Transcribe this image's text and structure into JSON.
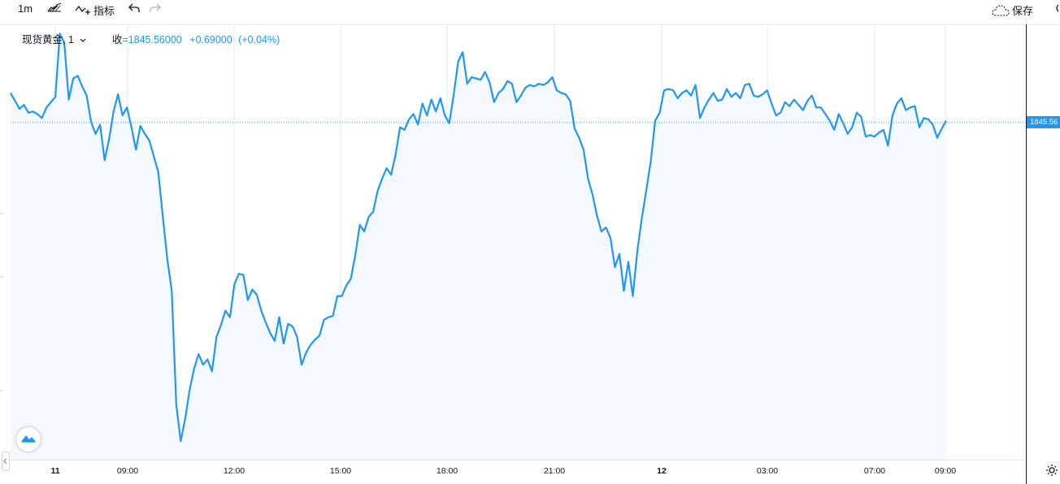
{
  "toolbar": {
    "interval": "1m",
    "indicators_label": "指标",
    "save_label": "保存",
    "chart_style_icon": "candles-icon",
    "undo_icon": "undo-icon",
    "redo_icon": "redo-icon",
    "cloud_icon": "cloud-icon"
  },
  "legend": {
    "symbol": "现货黄金, 1",
    "close_label": "收",
    "close_value": "=1845.56000",
    "change": "+0.69000",
    "change_pct": "(+0.04%)"
  },
  "price_tag": "1845.56",
  "colors": {
    "line": "#2196f3",
    "fill": "#f3f9fe",
    "grid": "#e6ebf1",
    "price_line": "#2196f3"
  },
  "chart_data": {
    "type": "area",
    "title": "",
    "xlabel": "",
    "ylabel": "",
    "x_ticks": [
      "11",
      "09:00",
      "12:00",
      "15:00",
      "18:00",
      "21:00",
      "12",
      "03:00",
      "07:00",
      "09:00"
    ],
    "y_ticks_visible": false,
    "last_value": 1845.56,
    "ylim": [
      1820.0,
      1853.0
    ],
    "grid": true,
    "series": [
      {
        "values": [
          1847.8,
          1847.2,
          1846.6,
          1846.9,
          1846.3,
          1846.4,
          1846.2,
          1845.9,
          1846.7,
          1847.1,
          1847.5,
          1852.3,
          1851.6,
          1847.3,
          1848.9,
          1849.1,
          1848.3,
          1847.6,
          1845.6,
          1844.7,
          1845.4,
          1842.7,
          1844.3,
          1846.4,
          1847.7,
          1846.1,
          1846.7,
          1845.2,
          1843.5,
          1845.3,
          1844.7,
          1844.2,
          1843.0,
          1841.8,
          1838.5,
          1835.2,
          1832.8,
          1824.2,
          1821.4,
          1823.1,
          1825.3,
          1826.9,
          1828.0,
          1827.2,
          1827.6,
          1826.7,
          1829.3,
          1830.2,
          1831.3,
          1830.8,
          1833.3,
          1834.1,
          1834.0,
          1832.1,
          1832.9,
          1832.5,
          1831.3,
          1830.4,
          1829.6,
          1829.0,
          1830.8,
          1828.8,
          1830.3,
          1830.1,
          1829.3,
          1827.2,
          1828.1,
          1828.7,
          1829.1,
          1829.4,
          1830.6,
          1830.8,
          1830.9,
          1832.4,
          1832.4,
          1833.2,
          1833.7,
          1835.5,
          1837.8,
          1837.3,
          1838.4,
          1838.8,
          1840.4,
          1841.3,
          1842.1,
          1841.6,
          1843.1,
          1845.2,
          1845.0,
          1845.8,
          1846.2,
          1845.4,
          1847.0,
          1846.1,
          1847.3,
          1846.4,
          1847.4,
          1846.1,
          1845.5,
          1847.7,
          1850.2,
          1850.9,
          1848.5,
          1849.0,
          1848.9,
          1848.8,
          1849.4,
          1848.6,
          1847.1,
          1847.8,
          1848.1,
          1848.7,
          1848.5,
          1847.1,
          1847.6,
          1848.2,
          1848.4,
          1848.3,
          1848.5,
          1848.4,
          1848.6,
          1849.0,
          1848.0,
          1847.8,
          1847.7,
          1847.2,
          1845.1,
          1844.4,
          1843.5,
          1841.3,
          1840.1,
          1838.5,
          1837.3,
          1837.6,
          1836.8,
          1834.6,
          1835.6,
          1832.8,
          1835.0,
          1832.4,
          1835.8,
          1838.3,
          1840.4,
          1842.6,
          1845.7,
          1846.3,
          1848.0,
          1848.1,
          1848.0,
          1847.4,
          1847.8,
          1848.0,
          1847.6,
          1848.4,
          1845.9,
          1846.7,
          1847.3,
          1847.8,
          1847.2,
          1847.3,
          1848.1,
          1847.5,
          1847.8,
          1847.4,
          1848.4,
          1848.5,
          1847.6,
          1847.5,
          1847.7,
          1848.0,
          1847.0,
          1846.1,
          1846.3,
          1847.1,
          1846.8,
          1847.3,
          1846.9,
          1846.5,
          1847.2,
          1847.6,
          1846.7,
          1846.7,
          1846.2,
          1845.7,
          1845.0,
          1846.2,
          1845.5,
          1844.7,
          1845.2,
          1846.3,
          1846.0,
          1844.5,
          1844.6,
          1844.5,
          1844.8,
          1845.0,
          1843.8,
          1846.1,
          1847.0,
          1847.4,
          1846.5,
          1846.7,
          1846.8,
          1845.2,
          1845.9,
          1845.8,
          1845.4,
          1844.4,
          1845.1,
          1845.7
        ]
      }
    ]
  }
}
